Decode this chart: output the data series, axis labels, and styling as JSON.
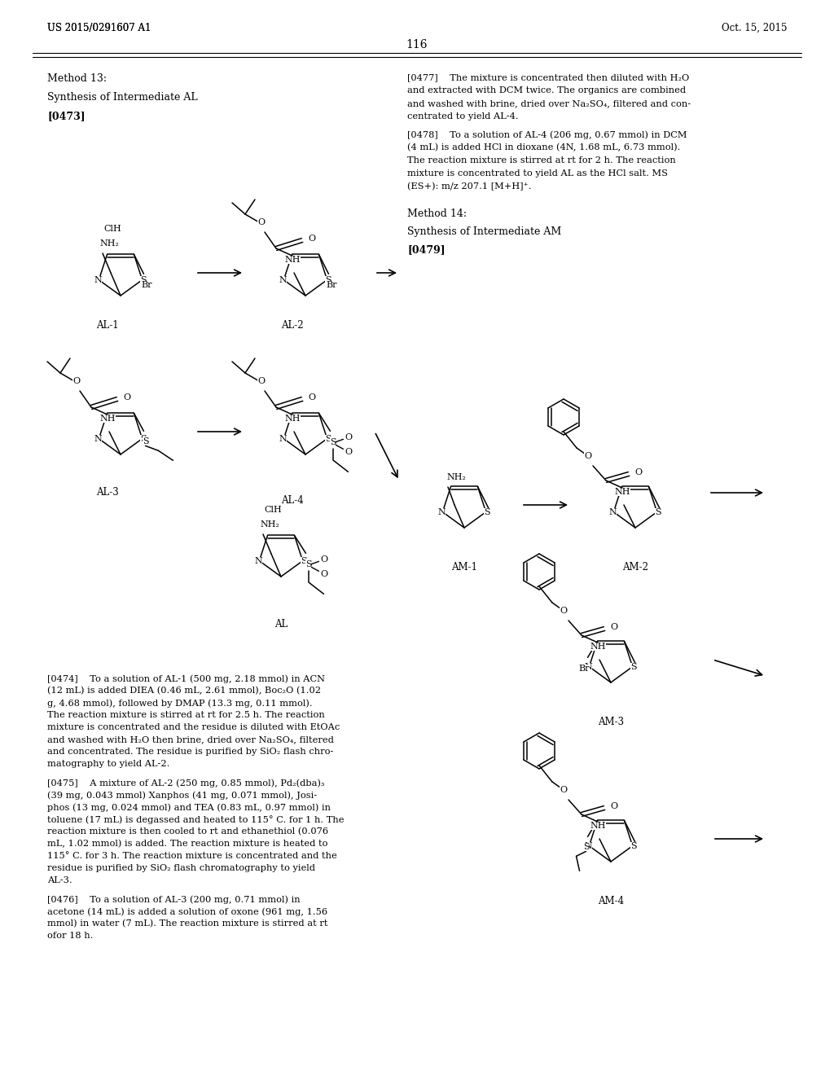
{
  "page_number": "116",
  "header_left": "US 2015/0291607 A1",
  "header_right": "Oct. 15, 2015",
  "bg": "#ffffff",
  "figsize": [
    10.24,
    13.2
  ],
  "dpi": 100,
  "text": {
    "method13": "Method 13:",
    "synth_al": "Synthesis of Intermediate AL",
    "p0473": "[0473]",
    "method14": "Method 14:",
    "synth_am": "Synthesis of Intermediate AM",
    "p0479": "[0479]",
    "p0477_lines": [
      "[0477]    The mixture is concentrated then diluted with H₂O",
      "and extracted with DCM twice. The organics are combined",
      "and washed with brine, dried over Na₂SO₄, filtered and con-",
      "centrated to yield AL-4."
    ],
    "p0478_lines": [
      "[0478]    To a solution of AL-4 (206 mg, 0.67 mmol) in DCM",
      "(4 mL) is added HCl in dioxane (4N, 1.68 mL, 6.73 mmol).",
      "The reaction mixture is stirred at rt for 2 h. The reaction",
      "mixture is concentrated to yield AL as the HCl salt. MS",
      "(ES+): m/z 207.1 [M+H]⁺."
    ],
    "p0474_lines": [
      "[0474]    To a solution of AL-1 (500 mg, 2.18 mmol) in ACN",
      "(12 mL) is added DIEA (0.46 mL, 2.61 mmol), Boc₂O (1.02",
      "g, 4.68 mmol), followed by DMAP (13.3 mg, 0.11 mmol).",
      "The reaction mixture is stirred at rt for 2.5 h. The reaction",
      "mixture is concentrated and the residue is diluted with EtOAc",
      "and washed with H₂O then brine, dried over Na₂SO₄, filtered",
      "and concentrated. The residue is purified by SiO₂ flash chro-",
      "matography to yield AL-2."
    ],
    "p0475_lines": [
      "[0475]    A mixture of AL-2 (250 mg, 0.85 mmol), Pd₂(dba)₃",
      "(39 mg, 0.043 mmol) Xanphos (41 mg, 0.071 mmol), Josi-",
      "phos (13 mg, 0.024 mmol) and TEA (0.83 mL, 0.97 mmol) in",
      "toluene (17 mL) is degassed and heated to 115° C. for 1 h. The",
      "reaction mixture is then cooled to rt and ethanethiol (0.076",
      "mL, 1.02 mmol) is added. The reaction mixture is heated to",
      "115° C. for 3 h. The reaction mixture is concentrated and the",
      "residue is purified by SiO₂ flash chromatography to yield",
      "AL-3."
    ],
    "p0476_lines": [
      "[0476]    To a solution of AL-3 (200 mg, 0.71 mmol) in",
      "acetone (14 mL) is added a solution of oxone (961 mg, 1.56",
      "mmol) in water (7 mL). The reaction mixture is stirred at rt",
      "ofor 18 h."
    ]
  }
}
